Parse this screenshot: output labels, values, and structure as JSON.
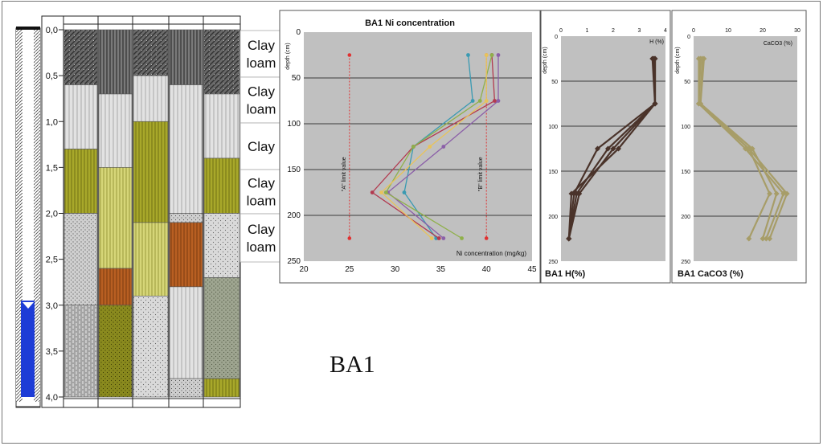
{
  "colors": {
    "plot_bg": "#c0c0c0",
    "water": "#1d3cd6",
    "dark": "#4a332a",
    "olive": "#a79d68"
  },
  "profile": {
    "depth_ticks": [
      "0,0",
      "0,5",
      "1,0",
      "1,5",
      "2,0",
      "2,5",
      "3,0",
      "3,5",
      "4,0"
    ],
    "texture_labels": [
      "Clay loam",
      "Clay loam",
      "Clay",
      "Clay loam",
      "Clay loam"
    ],
    "site_label": "BA1",
    "water_level_m": 2.95
  },
  "chart_data": [
    {
      "type": "line",
      "title": "BA1 Ni concentration",
      "xlabel": "Ni concentration (mg/kg)",
      "ylabel": "depth (cm)",
      "xlim": [
        20,
        45
      ],
      "ylim": [
        250,
        0
      ],
      "xticks": [
        "20",
        "25",
        "30",
        "35",
        "40",
        "45"
      ],
      "yticks": [
        "0",
        "50",
        "100",
        "150",
        "200",
        "250"
      ],
      "grid": true,
      "limit_lines": [
        {
          "label": "\"A\" limit value",
          "x": 25,
          "y": [
            25,
            225
          ],
          "color": "#e03030"
        },
        {
          "label": "\"B\" limit value",
          "x": 40,
          "y": [
            25,
            225
          ],
          "color": "#e03030"
        }
      ],
      "series": [
        {
          "color": "#3a9ab2",
          "points": [
            [
              38.0,
              25
            ],
            [
              38.5,
              75
            ],
            [
              32.0,
              125
            ],
            [
              31.0,
              175
            ],
            [
              34.5,
              225
            ]
          ]
        },
        {
          "color": "#8b5fa8",
          "points": [
            [
              41.3,
              25
            ],
            [
              41.3,
              75
            ],
            [
              35.3,
              125
            ],
            [
              29.2,
              175
            ],
            [
              35.3,
              225
            ]
          ]
        },
        {
          "color": "#b23a4f",
          "points": [
            [
              40.6,
              25
            ],
            [
              40.9,
              75
            ],
            [
              32.0,
              125
            ],
            [
              27.5,
              175
            ],
            [
              34.8,
              225
            ]
          ]
        },
        {
          "color": "#8fb04a",
          "points": [
            [
              40.6,
              25
            ],
            [
              39.3,
              75
            ],
            [
              32.0,
              125
            ],
            [
              29.0,
              175
            ],
            [
              37.3,
              225
            ]
          ]
        },
        {
          "color": "#e8c35a",
          "points": [
            [
              40.0,
              25
            ],
            [
              40.0,
              75
            ],
            [
              33.8,
              125
            ],
            [
              28.5,
              175
            ],
            [
              34.0,
              225
            ]
          ]
        }
      ]
    },
    {
      "type": "line",
      "title": "BA1 H(%)",
      "xlabel": "H (%)",
      "ylabel": "depth (cm)",
      "xlim": [
        0,
        4
      ],
      "ylim": [
        250,
        0
      ],
      "xticks": [
        "0",
        "1",
        "2",
        "3",
        "4"
      ],
      "yticks": [
        "0",
        "50",
        "100",
        "150",
        "200",
        "250"
      ],
      "grid": true,
      "series": [
        {
          "color": "#4a332a",
          "points": [
            [
              3.5,
              25
            ],
            [
              3.6,
              75
            ],
            [
              1.4,
              125
            ],
            [
              0.5,
              175
            ],
            [
              0.3,
              225
            ]
          ]
        },
        {
          "color": "#4a332a",
          "points": [
            [
              3.55,
              25
            ],
            [
              3.6,
              75
            ],
            [
              1.8,
              125
            ],
            [
              0.6,
              175
            ],
            [
              0.3,
              225
            ]
          ]
        },
        {
          "color": "#4a332a",
          "points": [
            [
              3.6,
              25
            ],
            [
              3.6,
              75
            ],
            [
              2.2,
              125
            ],
            [
              0.4,
              175
            ],
            [
              0.3,
              225
            ]
          ]
        },
        {
          "color": "#4a332a",
          "points": [
            [
              3.6,
              25
            ],
            [
              3.6,
              75
            ],
            [
              2.0,
              125
            ],
            [
              0.7,
              175
            ],
            [
              0.3,
              225
            ]
          ]
        }
      ]
    },
    {
      "type": "line",
      "title": "BA1 CaCO3 (%)",
      "xlabel": "CaCO3 (%)",
      "ylabel": "depth (cm)",
      "xlim": [
        0,
        30
      ],
      "ylim": [
        250,
        0
      ],
      "xticks": [
        "0",
        "10",
        "20",
        "30"
      ],
      "yticks": [
        "0",
        "50",
        "100",
        "150",
        "200",
        "250"
      ],
      "grid": true,
      "series": [
        {
          "color": "#a79d68",
          "points": [
            [
              2,
              25
            ],
            [
              1.5,
              75
            ],
            [
              16,
              125
            ],
            [
              22,
              175
            ],
            [
              16,
              225
            ]
          ]
        },
        {
          "color": "#a79d68",
          "points": [
            [
              3,
              25
            ],
            [
              2,
              75
            ],
            [
              17,
              125
            ],
            [
              24,
              175
            ],
            [
              20,
              225
            ]
          ]
        },
        {
          "color": "#a79d68",
          "points": [
            [
              1.5,
              25
            ],
            [
              1.5,
              75
            ],
            [
              15,
              125
            ],
            [
              26,
              175
            ],
            [
              21,
              225
            ]
          ]
        },
        {
          "color": "#a79d68",
          "points": [
            [
              2.5,
              25
            ],
            [
              2,
              75
            ],
            [
              16,
              125
            ],
            [
              27,
              175
            ],
            [
              22,
              225
            ]
          ]
        }
      ]
    }
  ]
}
